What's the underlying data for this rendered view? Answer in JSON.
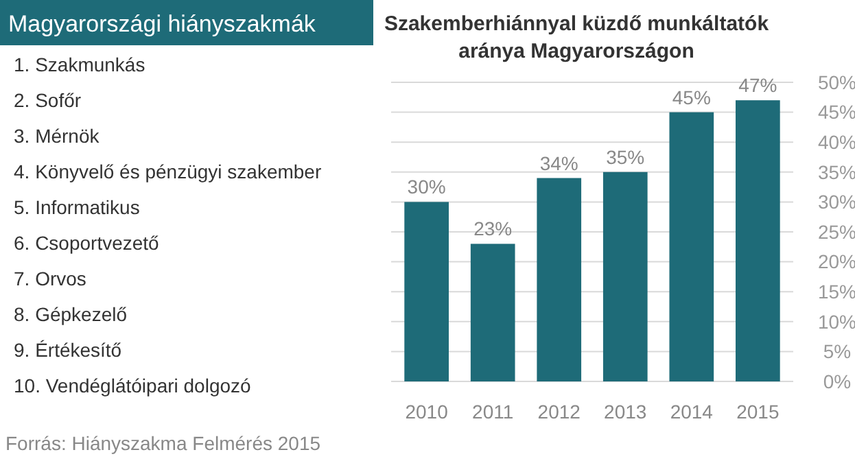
{
  "chart_data": [
    {
      "type": "other",
      "title": "Magyarországi hiányszakmák",
      "annotations": [
        "1. Szakmunkás",
        "2. Sofőr",
        "3. Mérnök",
        "4. Könyvelő és pénzügyi szakember",
        "5. Informatikus",
        "6. Csoportvezető",
        "7. Orvos",
        "8. Gépkezelő",
        "9. Értékesítő",
        "10. Vendéglátóipari dolgozó"
      ]
    },
    {
      "type": "bar",
      "title": "Szakemberhiánnyal küzdő munkáltatók\naránya Magyarországon",
      "categories": [
        "2010",
        "2011",
        "2012",
        "2013",
        "2014",
        "2015"
      ],
      "values": [
        30,
        23,
        34,
        35,
        45,
        47
      ],
      "value_labels": [
        "30%",
        "23%",
        "34%",
        "35%",
        "45%",
        "47%"
      ],
      "color": "#1e6b78",
      "ylim": [
        0,
        50
      ],
      "yticks": [
        {
          "value": 0,
          "label": "0%"
        },
        {
          "value": 5,
          "label": "5%"
        },
        {
          "value": 10,
          "label": "10%"
        },
        {
          "value": 15,
          "label": "15%"
        },
        {
          "value": 20,
          "label": "20%"
        },
        {
          "value": 25,
          "label": "25%"
        },
        {
          "value": 30,
          "label": "30%"
        },
        {
          "value": 35,
          "label": "35%"
        },
        {
          "value": 40,
          "label": "40%"
        },
        {
          "value": 45,
          "label": "45%"
        },
        {
          "value": 50,
          "label": "50%"
        }
      ],
      "grid": "y",
      "annotations": [
        "Forrás: Hiányszakma Felmérés 2015"
      ]
    }
  ]
}
